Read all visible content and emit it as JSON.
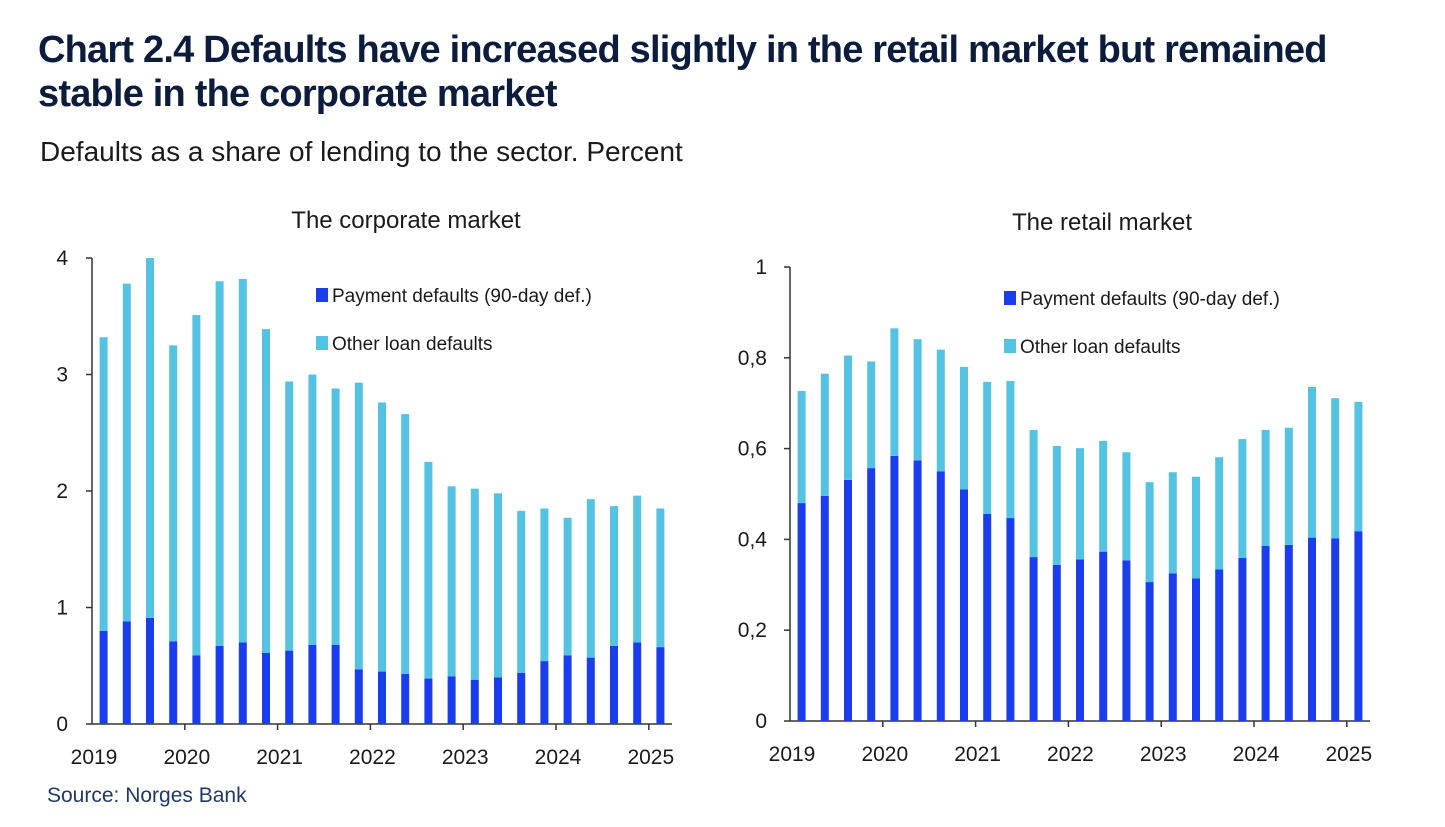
{
  "title": "Chart 2.4 Defaults have increased slightly in the retail market but remained stable in the corporate market",
  "subtitle": "Defaults as a share of lending to the sector. Percent",
  "source": "Source: Norges Bank",
  "colors": {
    "payment": "#1a3df0",
    "other": "#54c3e3",
    "axis": "#333333"
  },
  "chart_data": [
    {
      "type": "bar",
      "stacked": true,
      "title": "The corporate market",
      "x": [
        "2019 Q1",
        "2019 Q2",
        "2019 Q3",
        "2019 Q4",
        "2020 Q1",
        "2020 Q2",
        "2020 Q3",
        "2020 Q4",
        "2021 Q1",
        "2021 Q2",
        "2021 Q3",
        "2021 Q4",
        "2022 Q1",
        "2022 Q2",
        "2022 Q3",
        "2022 Q4",
        "2023 Q1",
        "2023 Q2",
        "2023 Q3",
        "2023 Q4",
        "2024 Q1",
        "2024 Q2",
        "2024 Q3",
        "2024 Q4",
        "2025 Q1"
      ],
      "x_tick_labels": [
        "2019",
        "2020",
        "2021",
        "2022",
        "2023",
        "2024",
        "2025"
      ],
      "y_tick_labels": [
        "0",
        "1",
        "2",
        "3",
        "4"
      ],
      "ylim": [
        0,
        4
      ],
      "legend_position": "top-right",
      "series": [
        {
          "name": "Payment defaults (90-day def.)",
          "values": [
            0.8,
            0.88,
            0.91,
            0.71,
            0.59,
            0.67,
            0.7,
            0.61,
            0.63,
            0.68,
            0.68,
            0.47,
            0.45,
            0.43,
            0.39,
            0.41,
            0.38,
            0.4,
            0.44,
            0.54,
            0.59,
            0.57,
            0.67,
            0.7,
            0.66
          ]
        },
        {
          "name": "Other loan defaults",
          "values": [
            2.52,
            2.9,
            3.09,
            2.54,
            2.92,
            3.13,
            3.12,
            2.78,
            2.31,
            2.32,
            2.2,
            2.46,
            2.31,
            2.23,
            1.86,
            1.63,
            1.64,
            1.58,
            1.39,
            1.31,
            1.18,
            1.36,
            1.2,
            1.26,
            1.19
          ]
        }
      ]
    },
    {
      "type": "bar",
      "stacked": true,
      "title": "The retail market",
      "x": [
        "2019 Q1",
        "2019 Q2",
        "2019 Q3",
        "2019 Q4",
        "2020 Q1",
        "2020 Q2",
        "2020 Q3",
        "2020 Q4",
        "2021 Q1",
        "2021 Q2",
        "2021 Q3",
        "2021 Q4",
        "2022 Q1",
        "2022 Q2",
        "2022 Q3",
        "2022 Q4",
        "2023 Q1",
        "2023 Q2",
        "2023 Q3",
        "2023 Q4",
        "2024 Q1",
        "2024 Q2",
        "2024 Q3",
        "2024 Q4",
        "2025 Q1"
      ],
      "x_tick_labels": [
        "2019",
        "2020",
        "2021",
        "2022",
        "2023",
        "2024",
        "2025"
      ],
      "y_tick_labels": [
        "0",
        "0,2",
        "0,4",
        "0,6",
        "0,8",
        "1"
      ],
      "ylim": [
        0,
        1
      ],
      "legend_position": "top-right",
      "series": [
        {
          "name": "Payment defaults (90-day def.)",
          "values": [
            0.48,
            0.496,
            0.531,
            0.557,
            0.584,
            0.574,
            0.55,
            0.51,
            0.456,
            0.447,
            0.361,
            0.344,
            0.356,
            0.373,
            0.354,
            0.306,
            0.325,
            0.314,
            0.334,
            0.359,
            0.386,
            0.388,
            0.404,
            0.402,
            0.418
          ]
        },
        {
          "name": "Other loan defaults",
          "values": [
            0.247,
            0.269,
            0.274,
            0.235,
            0.281,
            0.267,
            0.268,
            0.27,
            0.291,
            0.302,
            0.28,
            0.262,
            0.245,
            0.244,
            0.238,
            0.22,
            0.223,
            0.224,
            0.247,
            0.262,
            0.255,
            0.258,
            0.332,
            0.309,
            0.285
          ]
        }
      ]
    }
  ]
}
